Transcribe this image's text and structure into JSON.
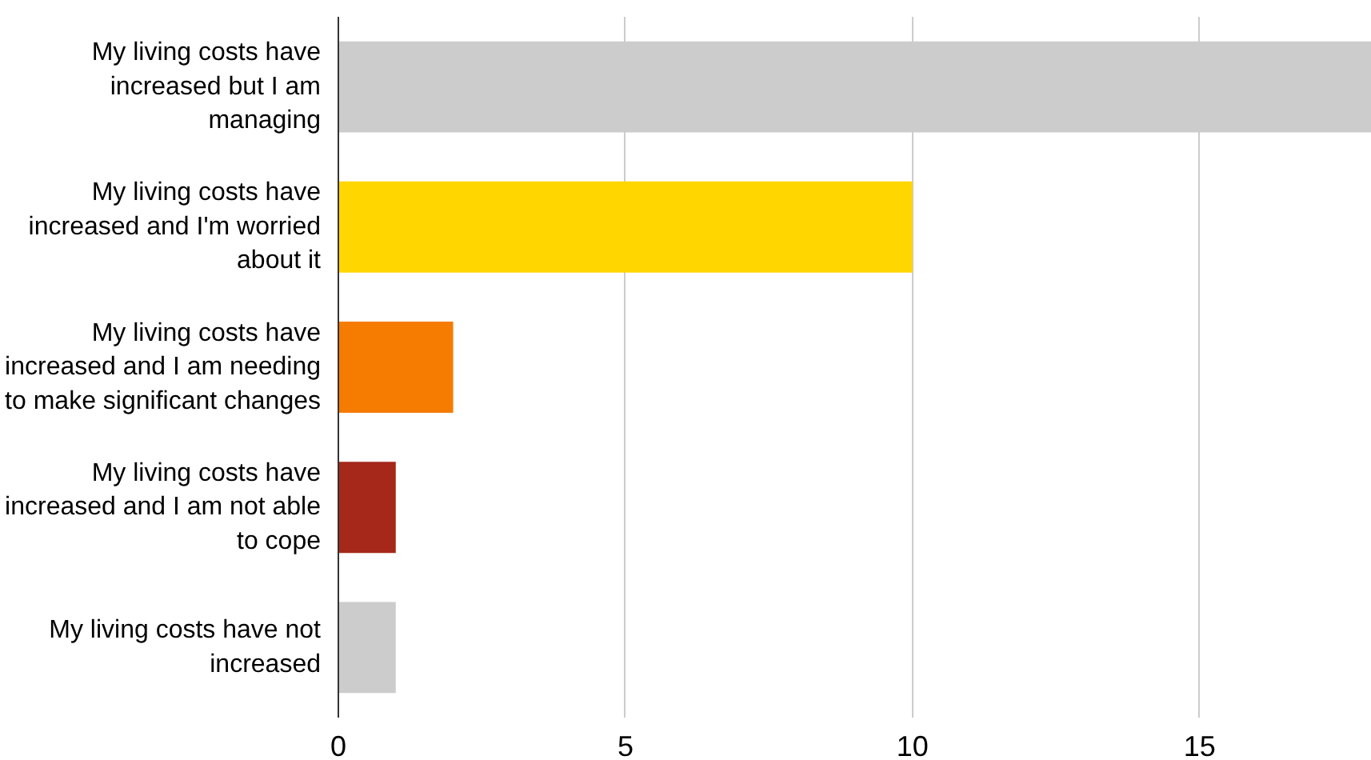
{
  "chart_data": {
    "type": "bar",
    "orientation": "horizontal",
    "categories": [
      "My living costs have\nincreased but I am\nmanaging",
      "My living costs have\nincreased and I'm worried\nabout it",
      "My living costs have\nincreased and I am needing\nto make significant changes",
      "My living costs have\nincreased and I am not able\nto cope",
      "My living costs have not\nincreased"
    ],
    "values": [
      18,
      10,
      2,
      1,
      1
    ],
    "colors": [
      "#cccccc",
      "#ffd600",
      "#f57c00",
      "#a5281b",
      "#cccccc"
    ],
    "xlim": [
      0,
      18
    ],
    "xticks": [
      0,
      5,
      10,
      15
    ],
    "grid": "x"
  }
}
